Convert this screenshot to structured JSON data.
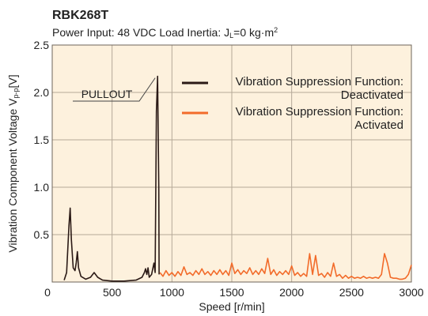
{
  "chart_data": {
    "type": "line",
    "title": "RBK268T",
    "subtitle_parts": [
      "Power Input: 48 VDC   Load Inertia: J",
      "L",
      "=0 kg·m",
      "2"
    ],
    "ylabel_parts": [
      "Vibration Component Voltage V",
      "p-p",
      "[V]"
    ],
    "xlabel": "Speed [r/min]",
    "annotation": "PULLOUT",
    "xlim": [
      0,
      3000
    ],
    "ylim": [
      0,
      2.5
    ],
    "xticks": [
      0,
      500,
      1000,
      1500,
      2000,
      2500,
      3000
    ],
    "yticks": [
      0.5,
      {
        "value": 1,
        "label": "1.0"
      },
      1.5,
      {
        "value": 2,
        "label": "2.0"
      },
      2.5
    ],
    "grid": true,
    "legend": "upper right",
    "series": [
      {
        "name": "Vibration Suppression Function:\nDeactivated",
        "color": "#2b1a16",
        "x": [
          100,
          120,
          140,
          150,
          160,
          175,
          190,
          200,
          210,
          220,
          240,
          280,
          320,
          350,
          380,
          420,
          500,
          600,
          700,
          750,
          770,
          780,
          790,
          800,
          810,
          830,
          850,
          860,
          870,
          880,
          890,
          893
        ],
        "values": [
          0.02,
          0.1,
          0.6,
          0.78,
          0.45,
          0.15,
          0.12,
          0.2,
          0.32,
          0.15,
          0.06,
          0.03,
          0.05,
          0.1,
          0.05,
          0.02,
          0.01,
          0.01,
          0.02,
          0.05,
          0.1,
          0.14,
          0.08,
          0.15,
          0.05,
          0.08,
          0.2,
          0.1,
          1.8,
          2.17,
          1.0,
          0.08
        ]
      },
      {
        "name": "Vibration Suppression Function:\nActivated",
        "color": "#f26b2a",
        "x": [
          900,
          925,
          950,
          975,
          1000,
          1025,
          1050,
          1075,
          1100,
          1125,
          1150,
          1175,
          1200,
          1225,
          1250,
          1275,
          1300,
          1325,
          1350,
          1375,
          1400,
          1425,
          1450,
          1475,
          1500,
          1525,
          1550,
          1575,
          1600,
          1625,
          1650,
          1675,
          1700,
          1725,
          1750,
          1775,
          1800,
          1825,
          1850,
          1875,
          1900,
          1925,
          1950,
          1975,
          2000,
          2025,
          2050,
          2075,
          2100,
          2125,
          2150,
          2175,
          2200,
          2225,
          2250,
          2275,
          2300,
          2325,
          2350,
          2375,
          2400,
          2425,
          2450,
          2475,
          2500,
          2525,
          2550,
          2575,
          2600,
          2625,
          2650,
          2675,
          2700,
          2725,
          2750,
          2775,
          2800,
          2825,
          2850,
          2875,
          2900,
          2925,
          2950,
          2975,
          3000
        ],
        "values": [
          0.1,
          0.06,
          0.12,
          0.07,
          0.1,
          0.06,
          0.11,
          0.07,
          0.16,
          0.08,
          0.1,
          0.07,
          0.12,
          0.08,
          0.14,
          0.08,
          0.11,
          0.07,
          0.12,
          0.08,
          0.13,
          0.08,
          0.12,
          0.07,
          0.2,
          0.09,
          0.13,
          0.08,
          0.12,
          0.09,
          0.15,
          0.08,
          0.12,
          0.08,
          0.14,
          0.09,
          0.25,
          0.08,
          0.13,
          0.07,
          0.11,
          0.08,
          0.12,
          0.08,
          0.17,
          0.07,
          0.1,
          0.06,
          0.09,
          0.06,
          0.3,
          0.08,
          0.28,
          0.07,
          0.09,
          0.05,
          0.1,
          0.06,
          0.2,
          0.06,
          0.08,
          0.04,
          0.07,
          0.04,
          0.06,
          0.04,
          0.05,
          0.04,
          0.06,
          0.04,
          0.05,
          0.04,
          0.05,
          0.04,
          0.08,
          0.3,
          0.2,
          0.05,
          0.04,
          0.04,
          0.03,
          0.03,
          0.04,
          0.08,
          0.18
        ]
      }
    ]
  }
}
